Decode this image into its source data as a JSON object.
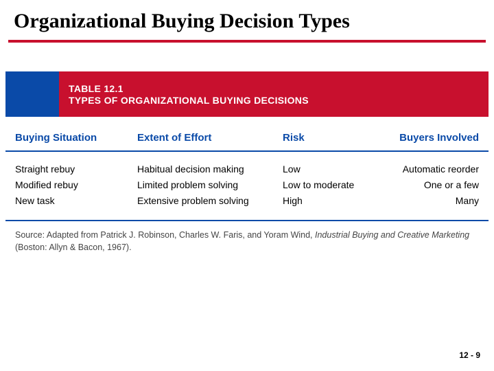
{
  "colors": {
    "accent_red": "#c8102e",
    "accent_blue": "#0a4aa8",
    "rule_blue": "#0a4aa8",
    "text_black": "#000000",
    "source_gray": "#444444"
  },
  "slide": {
    "title": "Organizational Buying Decision Types",
    "page_number": "12 - 9"
  },
  "table": {
    "label": "TABLE 12.1",
    "caption": "TYPES OF ORGANIZATIONAL BUYING DECISIONS",
    "columns": [
      "Buying Situation",
      "Extent of Effort",
      "Risk",
      "Buyers Involved"
    ],
    "rows": [
      [
        "Straight rebuy",
        "Habitual decision making",
        "Low",
        "Automatic reorder"
      ],
      [
        "Modified rebuy",
        "Limited problem solving",
        "Low to moderate",
        "One or a few"
      ],
      [
        "New task",
        "Extensive problem solving",
        "High",
        "Many"
      ]
    ]
  },
  "source": {
    "prefix": "Source: Adapted from Patrick J. Robinson, Charles W. Faris, and Yoram Wind, ",
    "italic": "Industrial Buying and Creative Marketing",
    "suffix": " (Boston: Allyn & Bacon, 1967)."
  }
}
